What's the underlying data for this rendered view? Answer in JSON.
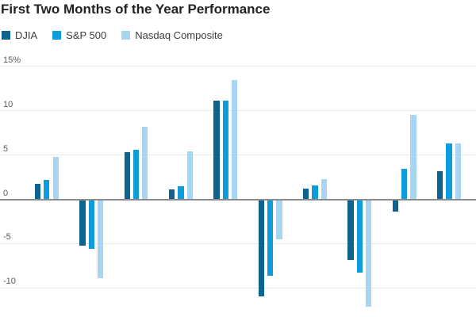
{
  "title": "First Two Months of the Year Performance",
  "chart_data": {
    "type": "bar",
    "title": "First Two Months of the Year Performance",
    "unit": "%",
    "n_groups": 10,
    "x_axis": {
      "labels_visible": false
    },
    "series": [
      {
        "name": "DJIA",
        "color": "#0e6491",
        "values": [
          1.7,
          -5.2,
          5.3,
          1.1,
          11.1,
          -11.0,
          1.2,
          -6.8,
          -1.4,
          3.2
        ]
      },
      {
        "name": "S&P 500",
        "color": "#0f9cdb",
        "values": [
          2.2,
          -5.6,
          5.6,
          1.5,
          11.1,
          -8.6,
          1.6,
          -8.3,
          3.4,
          6.3
        ]
      },
      {
        "name": "Nasdaq Composite",
        "color": "#a8d5f2",
        "values": [
          4.8,
          -8.9,
          8.2,
          5.4,
          13.5,
          -4.5,
          2.3,
          -12.1,
          9.5,
          6.3
        ]
      }
    ],
    "y_axis": {
      "ticks": [
        {
          "label": "15%",
          "value": 15
        },
        {
          "label": "10",
          "value": 10
        },
        {
          "label": "5",
          "value": 5
        },
        {
          "label": "0",
          "value": 0
        },
        {
          "label": "-5",
          "value": -5
        },
        {
          "label": "-10",
          "value": -10
        }
      ],
      "visible_range": [
        -13.3,
        15.2
      ]
    },
    "grid": true,
    "legend_position": "top-left",
    "colors": {
      "zero_line": "#8b8b8b",
      "gridline": "#e8e8e8",
      "title_text": "#222222",
      "legend_text": "#3d3d3d",
      "tick_text": "#5a5a5a"
    }
  }
}
